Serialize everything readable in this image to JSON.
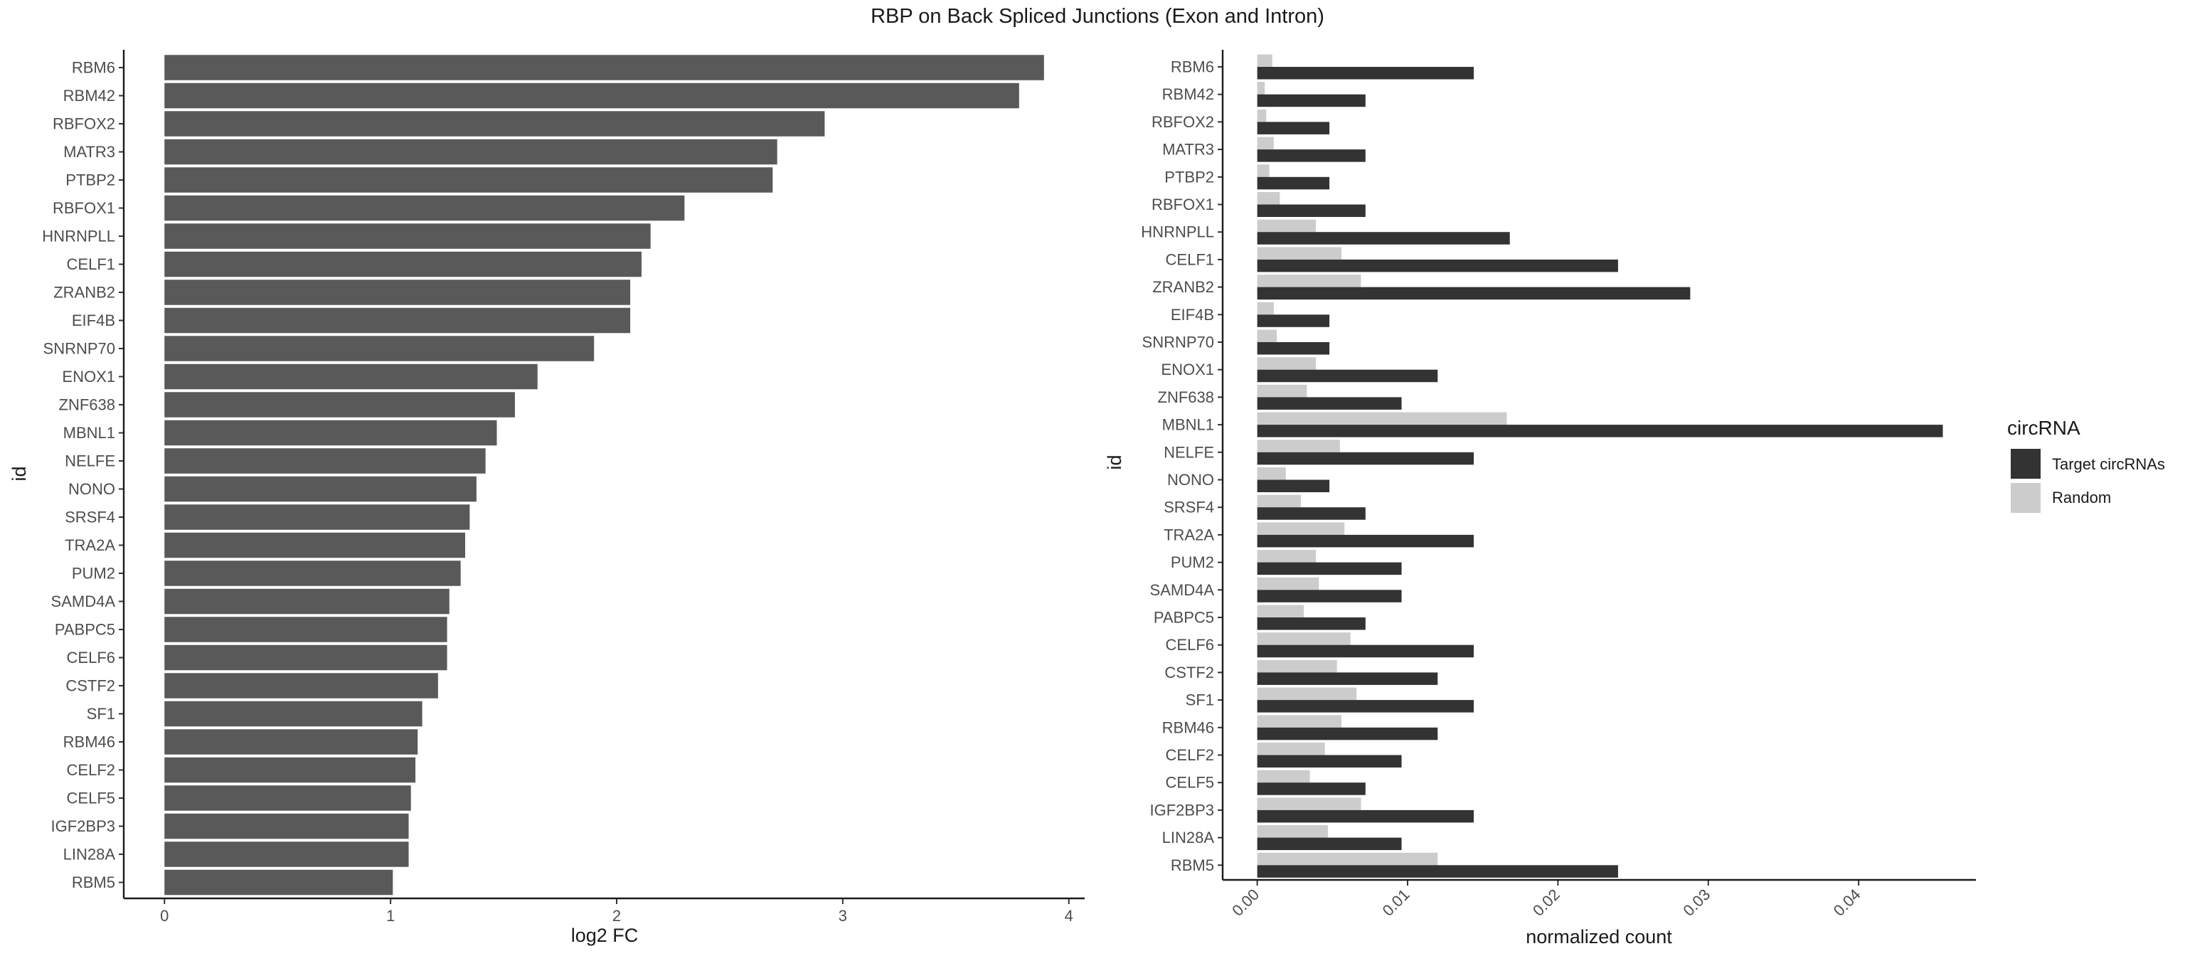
{
  "figure": {
    "title": "RBP on Back Spliced Junctions (Exon and Intron)"
  },
  "chart_data": [
    {
      "type": "bar",
      "orientation": "horizontal",
      "categories": [
        "RBM6",
        "RBM42",
        "RBFOX2",
        "MATR3",
        "PTBP2",
        "RBFOX1",
        "HNRNPLL",
        "CELF1",
        "ZRANB2",
        "EIF4B",
        "SNRNP70",
        "ENOX1",
        "ZNF638",
        "MBNL1",
        "NELFE",
        "NONO",
        "SRSF4",
        "TRA2A",
        "PUM2",
        "SAMD4A",
        "PABPC5",
        "CELF6",
        "CSTF2",
        "SF1",
        "RBM46",
        "CELF2",
        "CELF5",
        "IGF2BP3",
        "LIN28A",
        "RBM5"
      ],
      "values": [
        3.89,
        3.78,
        2.92,
        2.71,
        2.69,
        2.3,
        2.15,
        2.11,
        2.06,
        2.06,
        1.9,
        1.65,
        1.55,
        1.47,
        1.42,
        1.38,
        1.35,
        1.33,
        1.31,
        1.26,
        1.25,
        1.25,
        1.21,
        1.14,
        1.12,
        1.11,
        1.09,
        1.08,
        1.08,
        1.01
      ],
      "xlabel": "log2 FC",
      "ylabel": "id",
      "xlim": [
        -0.18,
        4.07
      ],
      "xticks": [
        "0",
        "1",
        "2",
        "3",
        "4"
      ],
      "bar_color": "#595959",
      "grid": false
    },
    {
      "type": "bar",
      "orientation": "horizontal",
      "grouped": true,
      "categories": [
        "RBM6",
        "RBM42",
        "RBFOX2",
        "MATR3",
        "PTBP2",
        "RBFOX1",
        "HNRNPLL",
        "CELF1",
        "ZRANB2",
        "EIF4B",
        "SNRNP70",
        "ENOX1",
        "ZNF638",
        "MBNL1",
        "NELFE",
        "NONO",
        "SRSF4",
        "TRA2A",
        "PUM2",
        "SAMD4A",
        "PABPC5",
        "CELF6",
        "CSTF2",
        "SF1",
        "RBM46",
        "CELF2",
        "CELF5",
        "IGF2BP3",
        "LIN28A",
        "RBM5"
      ],
      "series": [
        {
          "name": "Target circRNAs",
          "color": "#333333",
          "values": [
            0.0144,
            0.0072,
            0.0048,
            0.0072,
            0.0048,
            0.0072,
            0.0168,
            0.024,
            0.0288,
            0.0048,
            0.0048,
            0.012,
            0.0096,
            0.0456,
            0.0144,
            0.0048,
            0.0072,
            0.0144,
            0.0096,
            0.0096,
            0.0072,
            0.0144,
            0.012,
            0.0144,
            0.012,
            0.0096,
            0.0072,
            0.0144,
            0.0096,
            0.024
          ]
        },
        {
          "name": "Random",
          "color": "#cccccc",
          "values": [
            0.001,
            0.0005,
            0.0006,
            0.0011,
            0.0008,
            0.0015,
            0.0039,
            0.0056,
            0.0069,
            0.0011,
            0.0013,
            0.0039,
            0.0033,
            0.0166,
            0.0055,
            0.0019,
            0.0029,
            0.0058,
            0.0039,
            0.0041,
            0.0031,
            0.0062,
            0.0053,
            0.0066,
            0.0056,
            0.0045,
            0.0035,
            0.0069,
            0.0047,
            0.012
          ]
        }
      ],
      "xlabel": "normalized count",
      "ylabel": "id",
      "xlim": [
        -0.0023,
        0.0478
      ],
      "xticks": [
        "0.00",
        "0.01",
        "0.02",
        "0.03",
        "0.04"
      ],
      "legend": {
        "title": "circRNA",
        "position": "right"
      },
      "grid": false
    }
  ]
}
